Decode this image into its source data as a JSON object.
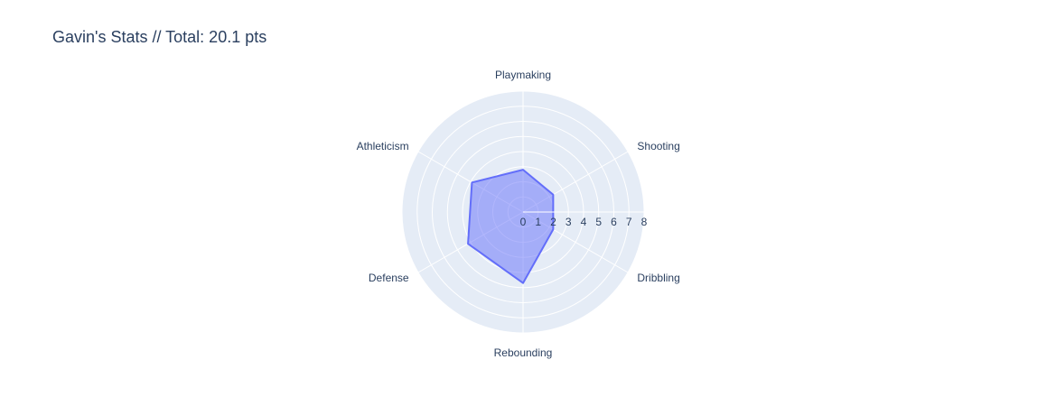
{
  "chart_data": {
    "type": "radar",
    "title": "Gavin's Stats // Total: 20.1 pts",
    "categories": [
      "Playmaking",
      "Shooting",
      "Dribbling",
      "Rebounding",
      "Defense",
      "Athleticism"
    ],
    "values": [
      2.8,
      2.3,
      2.3,
      4.7,
      4.2,
      3.9
    ],
    "radial_range": [
      0,
      8
    ],
    "radial_ticks": [
      "0",
      "1",
      "2",
      "3",
      "4",
      "5",
      "6",
      "7",
      "8"
    ],
    "fill_color": "#636efa",
    "background_color": "#e5ecf6",
    "grid": true
  }
}
